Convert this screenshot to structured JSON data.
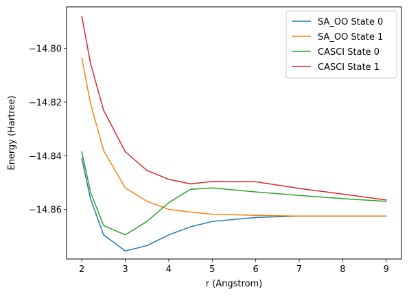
{
  "chart_data": {
    "type": "line",
    "xlabel": "r (Angstrom)",
    "ylabel": "Energy (Hartree)",
    "xlim": [
      1.65,
      9.35
    ],
    "ylim": [
      -14.8785,
      -14.8845
    ],
    "xticks": [
      2,
      3,
      4,
      5,
      6,
      7,
      8,
      9
    ],
    "yticks": [
      -14.86,
      -14.84,
      -14.82,
      -14.8
    ],
    "ytick_labels": [
      "−14.86",
      "−14.84",
      "−14.82",
      "−14.80"
    ],
    "legend_position": "top-right",
    "series": [
      {
        "name": "SA_OO State 0",
        "color": "#1f77b4",
        "points": [
          [
            2.0,
            -14.841
          ],
          [
            2.2,
            -14.856
          ],
          [
            2.5,
            -14.8695
          ],
          [
            3.0,
            -14.8755
          ],
          [
            3.5,
            -14.8735
          ],
          [
            4.0,
            -14.8695
          ],
          [
            4.5,
            -14.8665
          ],
          [
            5.0,
            -14.8645
          ],
          [
            6.0,
            -14.863
          ],
          [
            7.0,
            -14.8625
          ],
          [
            8.0,
            -14.8625
          ],
          [
            9.0,
            -14.8625
          ]
        ]
      },
      {
        "name": "SA_OO State 1",
        "color": "#ff7f0e",
        "points": [
          [
            2.0,
            -14.8035
          ],
          [
            2.2,
            -14.8205
          ],
          [
            2.5,
            -14.838
          ],
          [
            3.0,
            -14.852
          ],
          [
            3.5,
            -14.857
          ],
          [
            4.0,
            -14.86
          ],
          [
            4.5,
            -14.861
          ],
          [
            5.0,
            -14.8618
          ],
          [
            6.0,
            -14.8622
          ],
          [
            7.0,
            -14.8625
          ],
          [
            8.0,
            -14.8625
          ],
          [
            9.0,
            -14.8625
          ]
        ]
      },
      {
        "name": "CASCI State 0",
        "color": "#2ca02c",
        "points": [
          [
            2.0,
            -14.8385
          ],
          [
            2.2,
            -14.8535
          ],
          [
            2.5,
            -14.866
          ],
          [
            3.0,
            -14.8695
          ],
          [
            3.5,
            -14.8645
          ],
          [
            4.0,
            -14.8575
          ],
          [
            4.5,
            -14.8525
          ],
          [
            5.0,
            -14.852
          ],
          [
            6.0,
            -14.8535
          ],
          [
            7.0,
            -14.8548
          ],
          [
            8.0,
            -14.856
          ],
          [
            9.0,
            -14.857
          ]
        ]
      },
      {
        "name": "CASCI State 1",
        "color": "#d62728",
        "points": [
          [
            2.0,
            -14.788
          ],
          [
            2.2,
            -14.8055
          ],
          [
            2.5,
            -14.823
          ],
          [
            3.0,
            -14.8385
          ],
          [
            3.5,
            -14.8455
          ],
          [
            4.0,
            -14.8488
          ],
          [
            4.5,
            -14.8505
          ],
          [
            5.0,
            -14.8496
          ],
          [
            6.0,
            -14.8497
          ],
          [
            7.0,
            -14.8522
          ],
          [
            8.0,
            -14.8543
          ],
          [
            9.0,
            -14.8565
          ]
        ]
      }
    ]
  }
}
